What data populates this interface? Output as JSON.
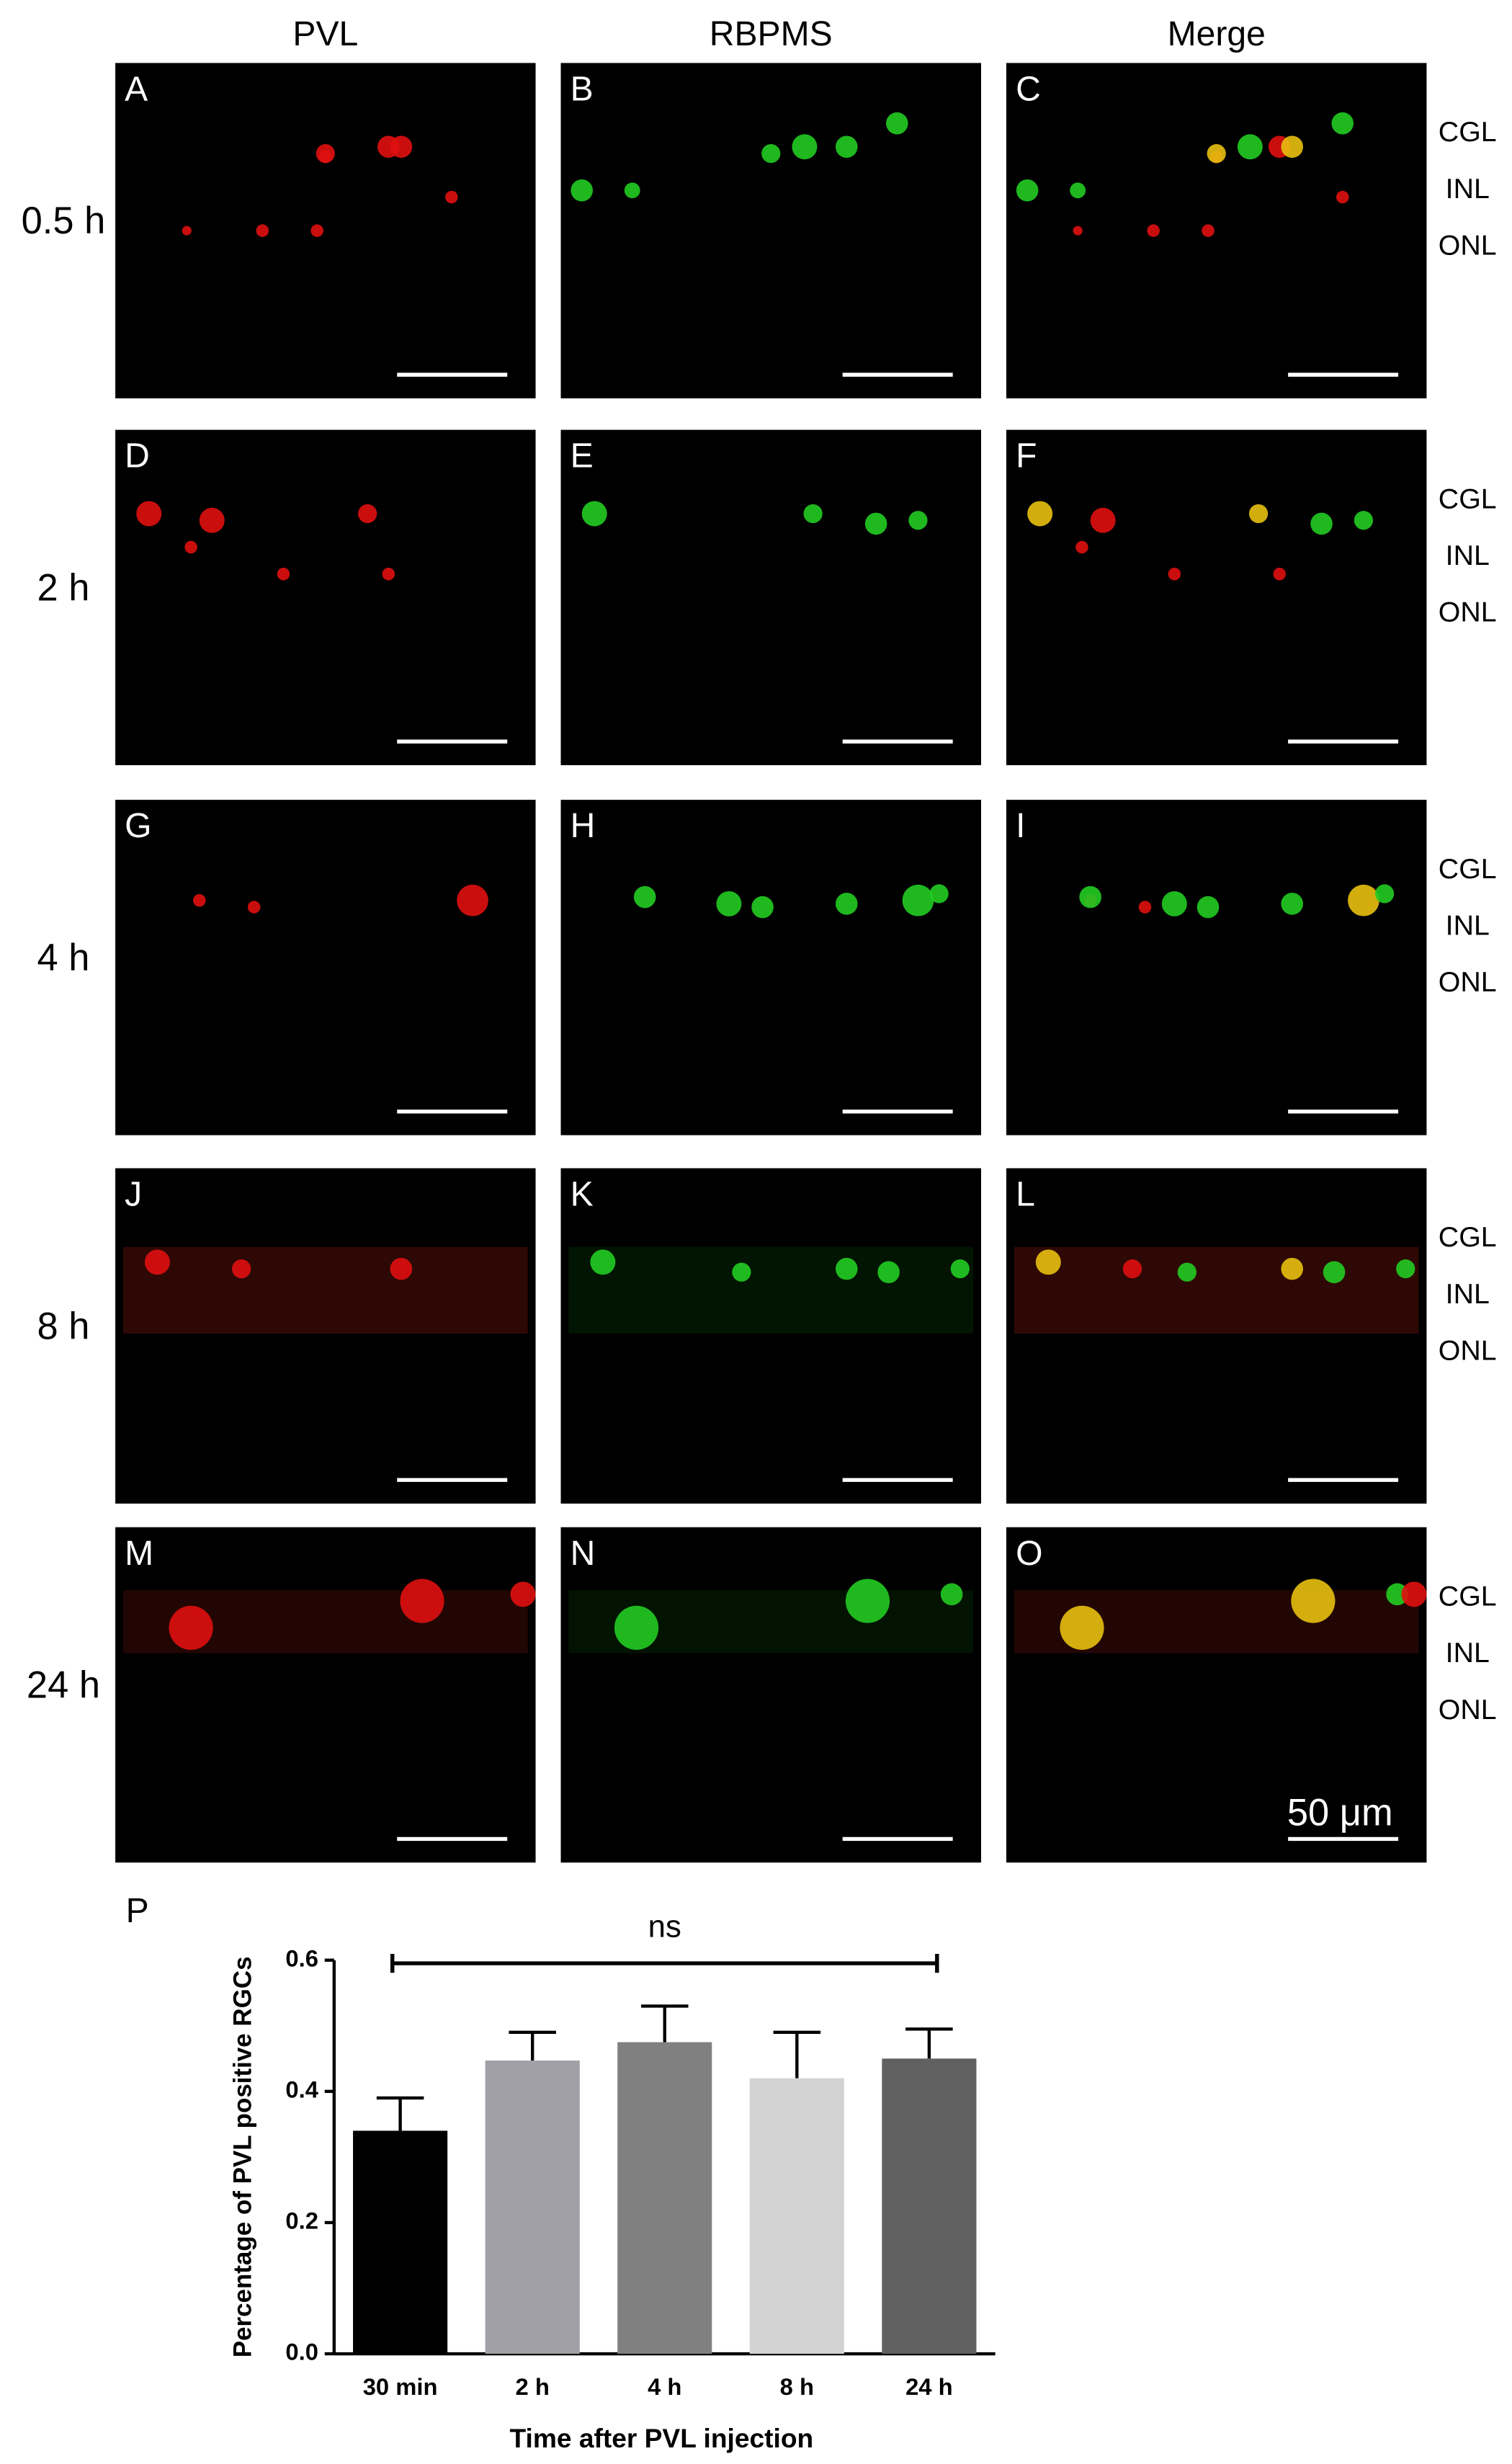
{
  "figure": {
    "column_headers": [
      "PVL",
      "RBPMS",
      "Merge"
    ],
    "row_labels": [
      "0.5 h",
      "2 h",
      "4 h",
      "8 h",
      "24 h"
    ],
    "panel_letters": [
      [
        "A",
        "B",
        "C"
      ],
      [
        "D",
        "E",
        "F"
      ],
      [
        "G",
        "H",
        "I"
      ],
      [
        "J",
        "K",
        "L"
      ],
      [
        "M",
        "N",
        "O"
      ]
    ],
    "layer_labels": [
      "CGL",
      "INL",
      "ONL"
    ],
    "scale_bar_label": "50 μm"
  },
  "chart_data": {
    "type": "bar",
    "panel_label": "P",
    "ylabel": "Percentage of PVL positive RGCs",
    "xlabel": "Time after PVL injection",
    "categories": [
      "30 min",
      "2 h",
      "4 h",
      "8 h",
      "24 h"
    ],
    "values": [
      0.34,
      0.447,
      0.475,
      0.42,
      0.45
    ],
    "errors": [
      0.05,
      0.043,
      0.055,
      0.07,
      0.045
    ],
    "colors": [
      "#000000",
      "#a0a0a6",
      "#808080",
      "#d3d3d3",
      "#606060"
    ],
    "ylim": [
      0,
      0.6
    ],
    "yticks": [
      {
        "value": 0,
        "label": "0.0"
      },
      0.2,
      0.4,
      0.6
    ],
    "annotation": "ns"
  }
}
